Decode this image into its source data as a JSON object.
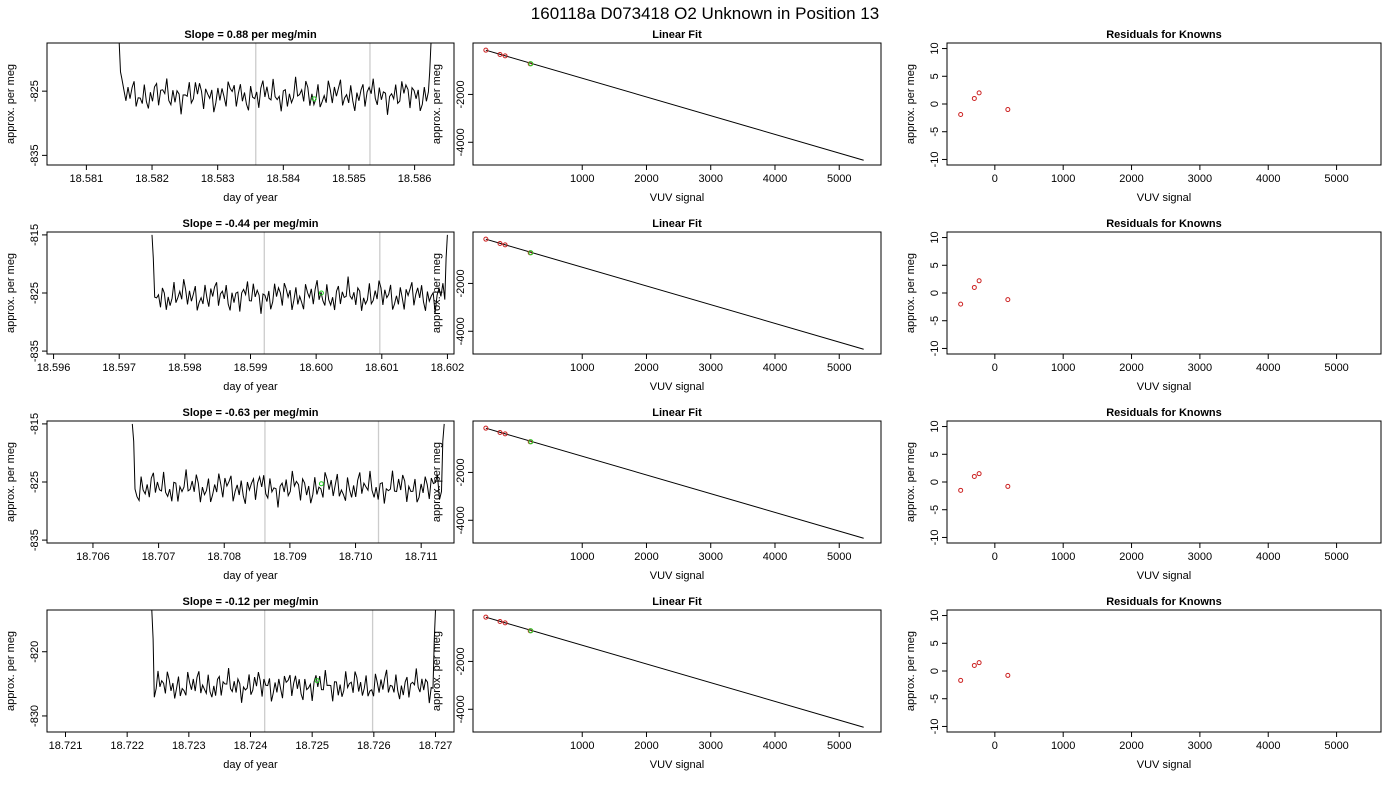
{
  "figure_title": "160118a      D073418   O2 Unknown in Position  13",
  "colors": {
    "trace": "#000000",
    "marker_green": "#22cc22",
    "marker_red": "#cc2222",
    "vline": "#cccccc",
    "frame": "#000000"
  },
  "chart_data": [
    {
      "type": "line",
      "row": 0,
      "col": 0,
      "title": "Slope =  0.88  per meg/min",
      "xlabel": "day of year",
      "ylabel": "approx. per meg",
      "xlim": [
        18.5804,
        18.5866
      ],
      "ylim": [
        -836.5,
        -817.5
      ],
      "xticks": [
        "18.581",
        "18.582",
        "18.583",
        "18.584",
        "18.585",
        "18.586"
      ],
      "xtick_values": [
        18.581,
        18.582,
        18.583,
        18.584,
        18.585,
        18.586
      ],
      "yticks": [
        "-835",
        "-825"
      ],
      "ytick_values": [
        -835,
        -825
      ],
      "start": 18.5815,
      "end": 18.58625,
      "level": -825.6,
      "amp": 3.0,
      "n": 150,
      "edge_low": -822,
      "edge_high": -817.5,
      "vlines": [
        18.58358,
        18.58532
      ],
      "marker": {
        "x": 18.58447,
        "y": -826.2
      }
    },
    {
      "type": "scatter",
      "row": 0,
      "col": 1,
      "title": "Linear Fit",
      "xlabel": "VUV signal",
      "ylabel": "approx. per meg",
      "xlim": [
        -700,
        5650
      ],
      "ylim": [
        -4950,
        150
      ],
      "xticks": [
        "1000",
        "2000",
        "3000",
        "4000",
        "5000"
      ],
      "xtick_values": [
        1000,
        2000,
        3000,
        4000,
        5000
      ],
      "yticks": [
        "-4000",
        "-2000"
      ],
      "ytick_values": [
        -4000,
        -2000
      ],
      "fit_line": {
        "x": [
          -500,
          5380
        ],
        "y": [
          -150,
          -4750
        ]
      },
      "points_red": [
        {
          "x": -500,
          "y": -150
        },
        {
          "x": -280,
          "y": -330
        },
        {
          "x": -200,
          "y": -390
        },
        {
          "x": 190,
          "y": -720
        }
      ],
      "points_green": [
        {
          "x": 200,
          "y": -720
        }
      ]
    },
    {
      "type": "scatter",
      "row": 0,
      "col": 2,
      "title": "Residuals for Knowns",
      "xlabel": "VUV signal",
      "ylabel": "approx. per meg",
      "xlim": [
        -700,
        5650
      ],
      "ylim": [
        -11,
        11
      ],
      "xticks": [
        "0",
        "1000",
        "2000",
        "3000",
        "4000",
        "5000"
      ],
      "xtick_values": [
        0,
        1000,
        2000,
        3000,
        4000,
        5000
      ],
      "yticks": [
        "-10",
        "-5",
        "0",
        "5",
        "10"
      ],
      "ytick_values": [
        -10,
        -5,
        0,
        5,
        10
      ],
      "points_red": [
        {
          "x": -500,
          "y": -1.9
        },
        {
          "x": -300,
          "y": 1.0
        },
        {
          "x": -230,
          "y": 2.0
        },
        {
          "x": 190,
          "y": -1.0
        }
      ]
    },
    {
      "type": "line",
      "row": 1,
      "col": 0,
      "title": "Slope =  -0.44  per meg/min",
      "xlabel": "day of year",
      "ylabel": "approx. per meg",
      "xlim": [
        18.5959,
        18.6021
      ],
      "ylim": [
        -835.5,
        -814.5
      ],
      "xticks": [
        "18.596",
        "18.597",
        "18.598",
        "18.599",
        "18.600",
        "18.601",
        "18.602"
      ],
      "xtick_values": [
        18.596,
        18.597,
        18.598,
        18.599,
        18.6,
        18.601,
        18.602
      ],
      "yticks": [
        "-835",
        "-825",
        "-815"
      ],
      "ytick_values": [
        -835,
        -825,
        -815
      ],
      "start": 18.5975,
      "end": 18.602,
      "level": -825.5,
      "amp": 3.2,
      "n": 150,
      "edge_low": -819,
      "edge_high": -815,
      "vlines": [
        18.59921,
        18.60097
      ],
      "marker": {
        "x": 18.60008,
        "y": -825.0
      }
    },
    {
      "type": "scatter",
      "row": 1,
      "col": 1,
      "title": "Linear Fit",
      "xlabel": "VUV signal",
      "ylabel": "approx. per meg",
      "xlim": [
        -700,
        5650
      ],
      "ylim": [
        -4950,
        150
      ],
      "xticks": [
        "1000",
        "2000",
        "3000",
        "4000",
        "5000"
      ],
      "xtick_values": [
        1000,
        2000,
        3000,
        4000,
        5000
      ],
      "yticks": [
        "-4000",
        "-2000"
      ],
      "ytick_values": [
        -4000,
        -2000
      ],
      "fit_line": {
        "x": [
          -500,
          5380
        ],
        "y": [
          -150,
          -4750
        ]
      },
      "points_red": [
        {
          "x": -500,
          "y": -150
        },
        {
          "x": -280,
          "y": -330
        },
        {
          "x": -200,
          "y": -390
        },
        {
          "x": 190,
          "y": -720
        }
      ],
      "points_green": [
        {
          "x": 200,
          "y": -720
        }
      ]
    },
    {
      "type": "scatter",
      "row": 1,
      "col": 2,
      "title": "Residuals for Knowns",
      "xlabel": "VUV signal",
      "ylabel": "approx. per meg",
      "xlim": [
        -700,
        5650
      ],
      "ylim": [
        -11,
        11
      ],
      "xticks": [
        "0",
        "1000",
        "2000",
        "3000",
        "4000",
        "5000"
      ],
      "xtick_values": [
        0,
        1000,
        2000,
        3000,
        4000,
        5000
      ],
      "yticks": [
        "-10",
        "-5",
        "0",
        "5",
        "10"
      ],
      "ytick_values": [
        -10,
        -5,
        0,
        5,
        10
      ],
      "points_red": [
        {
          "x": -500,
          "y": -2.0
        },
        {
          "x": -300,
          "y": 1.0
        },
        {
          "x": -230,
          "y": 2.2
        },
        {
          "x": 190,
          "y": -1.2
        }
      ]
    },
    {
      "type": "line",
      "row": 2,
      "col": 0,
      "title": "Slope =  -0.63  per meg/min",
      "xlabel": "day of year",
      "ylabel": "approx. per meg",
      "xlim": [
        18.7053,
        18.7115
      ],
      "ylim": [
        -835.5,
        -814.5
      ],
      "xticks": [
        "18.706",
        "18.707",
        "18.708",
        "18.709",
        "18.710",
        "18.711"
      ],
      "xtick_values": [
        18.706,
        18.707,
        18.708,
        18.709,
        18.71,
        18.711
      ],
      "yticks": [
        "-835",
        "-825",
        "-815"
      ],
      "ytick_values": [
        -835,
        -825,
        -815
      ],
      "start": 18.7066,
      "end": 18.71135,
      "level": -826.0,
      "amp": 3.3,
      "n": 150,
      "edge_low": -818,
      "edge_high": -815,
      "vlines": [
        18.70862,
        18.71035
      ],
      "marker": {
        "x": 18.70948,
        "y": -825.3
      }
    },
    {
      "type": "scatter",
      "row": 2,
      "col": 1,
      "title": "Linear Fit",
      "xlabel": "VUV signal",
      "ylabel": "approx. per meg",
      "xlim": [
        -700,
        5650
      ],
      "ylim": [
        -4950,
        150
      ],
      "xticks": [
        "1000",
        "2000",
        "3000",
        "4000",
        "5000"
      ],
      "xtick_values": [
        1000,
        2000,
        3000,
        4000,
        5000
      ],
      "yticks": [
        "-4000",
        "-2000"
      ],
      "ytick_values": [
        -4000,
        -2000
      ],
      "fit_line": {
        "x": [
          -500,
          5380
        ],
        "y": [
          -150,
          -4750
        ]
      },
      "points_red": [
        {
          "x": -500,
          "y": -150
        },
        {
          "x": -280,
          "y": -330
        },
        {
          "x": -200,
          "y": -390
        },
        {
          "x": 190,
          "y": -720
        }
      ],
      "points_green": [
        {
          "x": 200,
          "y": -720
        }
      ]
    },
    {
      "type": "scatter",
      "row": 2,
      "col": 2,
      "title": "Residuals for Knowns",
      "xlabel": "VUV signal",
      "ylabel": "approx. per meg",
      "xlim": [
        -700,
        5650
      ],
      "ylim": [
        -11,
        11
      ],
      "xticks": [
        "0",
        "1000",
        "2000",
        "3000",
        "4000",
        "5000"
      ],
      "xtick_values": [
        0,
        1000,
        2000,
        3000,
        4000,
        5000
      ],
      "yticks": [
        "-10",
        "-5",
        "0",
        "5",
        "10"
      ],
      "ytick_values": [
        -10,
        -5,
        0,
        5,
        10
      ],
      "points_red": [
        {
          "x": -500,
          "y": -1.5
        },
        {
          "x": -300,
          "y": 1.0
        },
        {
          "x": -230,
          "y": 1.5
        },
        {
          "x": 190,
          "y": -0.8
        }
      ]
    },
    {
      "type": "line",
      "row": 3,
      "col": 0,
      "title": "Slope =  -0.12  per meg/min",
      "xlabel": "day of year",
      "ylabel": "approx. per meg",
      "xlim": [
        18.7207,
        18.7273
      ],
      "ylim": [
        -832.5,
        -813.5
      ],
      "xticks": [
        "18.721",
        "18.722",
        "18.723",
        "18.724",
        "18.725",
        "18.726",
        "18.727"
      ],
      "xtick_values": [
        18.721,
        18.722,
        18.723,
        18.724,
        18.725,
        18.726,
        18.727
      ],
      "yticks": [
        "-830",
        "-820"
      ],
      "ytick_values": [
        -830,
        -820
      ],
      "start": 18.7224,
      "end": 18.727,
      "level": -825.3,
      "amp": 2.8,
      "n": 150,
      "edge_low": -818,
      "edge_high": -813.5,
      "vlines": [
        18.72423,
        18.72598
      ],
      "marker": {
        "x": 18.72508,
        "y": -824.5
      }
    },
    {
      "type": "scatter",
      "row": 3,
      "col": 1,
      "title": "Linear Fit",
      "xlabel": "VUV signal",
      "ylabel": "approx. per meg",
      "xlim": [
        -700,
        5650
      ],
      "ylim": [
        -4950,
        150
      ],
      "xticks": [
        "1000",
        "2000",
        "3000",
        "4000",
        "5000"
      ],
      "xtick_values": [
        1000,
        2000,
        3000,
        4000,
        5000
      ],
      "yticks": [
        "-4000",
        "-2000"
      ],
      "ytick_values": [
        -4000,
        -2000
      ],
      "fit_line": {
        "x": [
          -500,
          5380
        ],
        "y": [
          -150,
          -4750
        ]
      },
      "points_red": [
        {
          "x": -500,
          "y": -150
        },
        {
          "x": -280,
          "y": -330
        },
        {
          "x": -200,
          "y": -390
        },
        {
          "x": 190,
          "y": -720
        }
      ],
      "points_green": [
        {
          "x": 200,
          "y": -720
        }
      ]
    },
    {
      "type": "scatter",
      "row": 3,
      "col": 2,
      "title": "Residuals for Knowns",
      "xlabel": "VUV signal",
      "ylabel": "approx. per meg",
      "xlim": [
        -700,
        5650
      ],
      "ylim": [
        -11,
        11
      ],
      "xticks": [
        "0",
        "1000",
        "2000",
        "3000",
        "4000",
        "5000"
      ],
      "xtick_values": [
        0,
        1000,
        2000,
        3000,
        4000,
        5000
      ],
      "yticks": [
        "-10",
        "-5",
        "0",
        "5",
        "10"
      ],
      "ytick_values": [
        -10,
        -5,
        0,
        5,
        10
      ],
      "points_red": [
        {
          "x": -500,
          "y": -1.7
        },
        {
          "x": -300,
          "y": 1.0
        },
        {
          "x": -230,
          "y": 1.5
        },
        {
          "x": 190,
          "y": -0.8
        }
      ]
    }
  ]
}
